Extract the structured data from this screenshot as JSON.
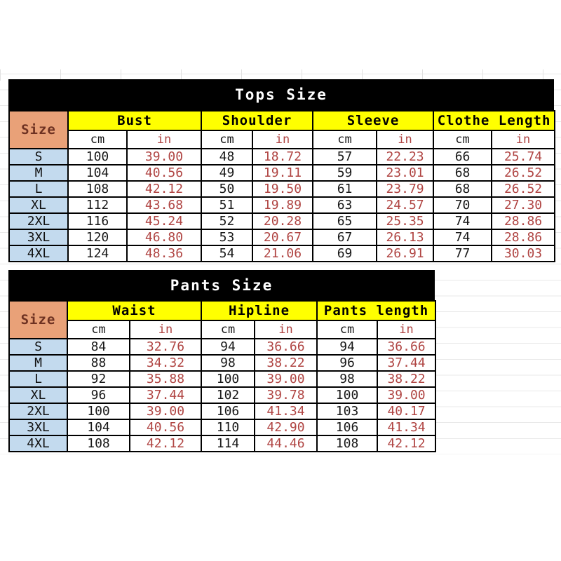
{
  "chart_data": [
    {
      "type": "table",
      "title": "Tops Size",
      "corner_header": "Size",
      "column_groups": [
        "Bust",
        "Shoulder",
        "Sleeve",
        "Clothe Length"
      ],
      "unit_labels": [
        "cm",
        "in"
      ],
      "rows": [
        {
          "size": "S",
          "values": [
            "100",
            "39.00",
            "48",
            "18.72",
            "57",
            "22.23",
            "66",
            "25.74"
          ]
        },
        {
          "size": "M",
          "values": [
            "104",
            "40.56",
            "49",
            "19.11",
            "59",
            "23.01",
            "68",
            "26.52"
          ]
        },
        {
          "size": "L",
          "values": [
            "108",
            "42.12",
            "50",
            "19.50",
            "61",
            "23.79",
            "68",
            "26.52"
          ]
        },
        {
          "size": "XL",
          "values": [
            "112",
            "43.68",
            "51",
            "19.89",
            "63",
            "24.57",
            "70",
            "27.30"
          ]
        },
        {
          "size": "2XL",
          "values": [
            "116",
            "45.24",
            "52",
            "20.28",
            "65",
            "25.35",
            "74",
            "28.86"
          ]
        },
        {
          "size": "3XL",
          "values": [
            "120",
            "46.80",
            "53",
            "20.67",
            "67",
            "26.13",
            "74",
            "28.86"
          ]
        },
        {
          "size": "4XL",
          "values": [
            "124",
            "48.36",
            "54",
            "21.06",
            "69",
            "26.91",
            "77",
            "30.03"
          ]
        }
      ]
    },
    {
      "type": "table",
      "title": "Pants Size",
      "corner_header": "Size",
      "column_groups": [
        "Waist",
        "Hipline",
        "Pants length"
      ],
      "unit_labels": [
        "cm",
        "in"
      ],
      "rows": [
        {
          "size": "S",
          "values": [
            "84",
            "32.76",
            "94",
            "36.66",
            "94",
            "36.66"
          ]
        },
        {
          "size": "M",
          "values": [
            "88",
            "34.32",
            "98",
            "38.22",
            "96",
            "37.44"
          ]
        },
        {
          "size": "L",
          "values": [
            "92",
            "35.88",
            "100",
            "39.00",
            "98",
            "38.22"
          ]
        },
        {
          "size": "XL",
          "values": [
            "96",
            "37.44",
            "102",
            "39.78",
            "100",
            "39.00"
          ]
        },
        {
          "size": "2XL",
          "values": [
            "100",
            "39.00",
            "106",
            "41.34",
            "103",
            "40.17"
          ]
        },
        {
          "size": "3XL",
          "values": [
            "104",
            "40.56",
            "110",
            "42.90",
            "106",
            "41.34"
          ]
        },
        {
          "size": "4XL",
          "values": [
            "108",
            "42.12",
            "114",
            "44.46",
            "108",
            "42.12"
          ]
        }
      ]
    }
  ],
  "colors": {
    "title_bg": "#000000",
    "title_text": "#ffffff",
    "group_header_bg": "#ffff00",
    "corner_bg": "#e9a178",
    "corner_text": "#6e3222",
    "size_cell_bg": "#c3daee",
    "in_text": "#b04543",
    "cm_text": "#181818",
    "border": "#000000",
    "gridline": "#e2e2e2"
  }
}
